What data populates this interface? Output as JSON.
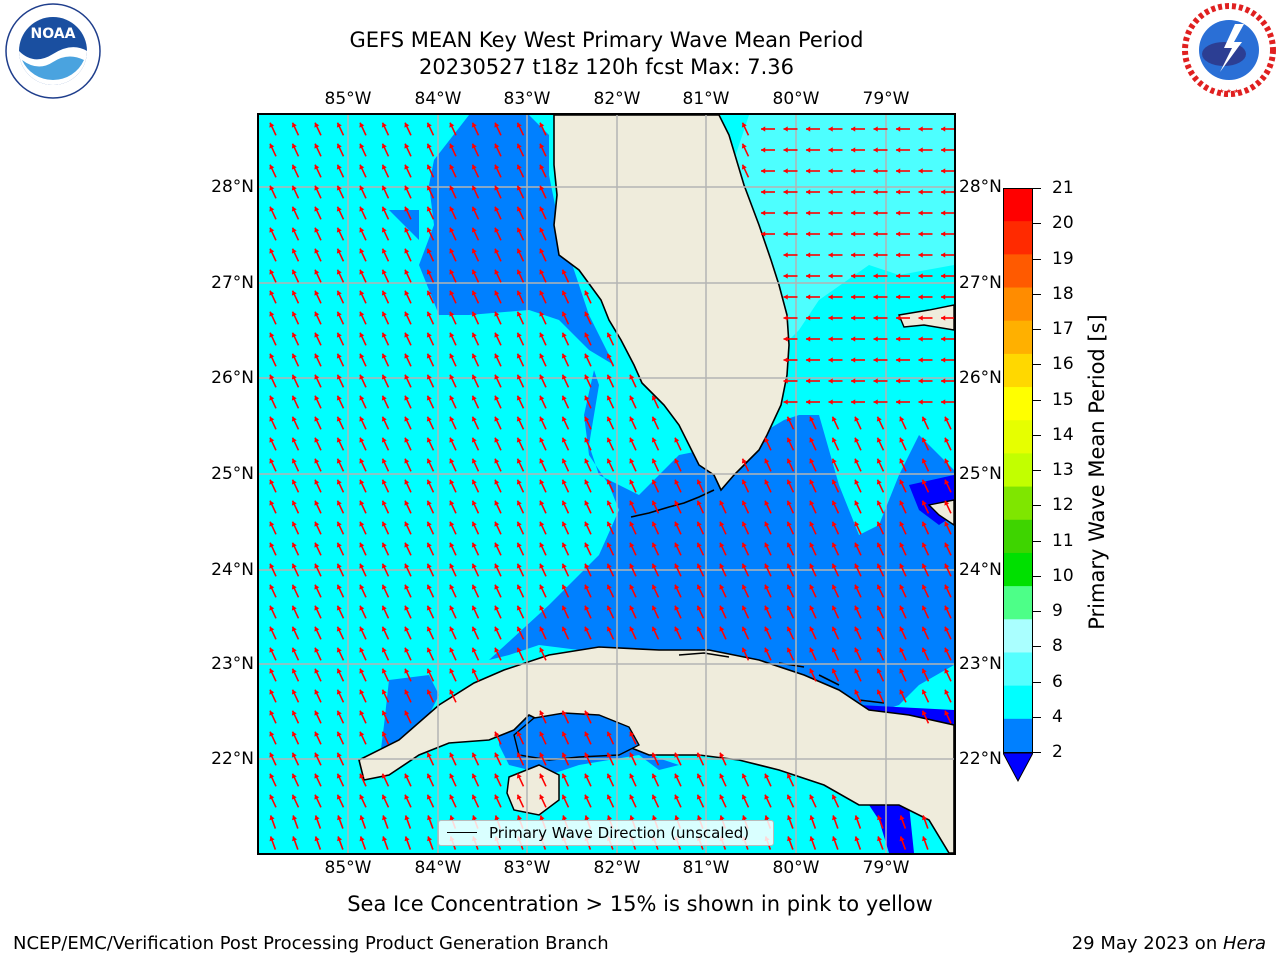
{
  "title": {
    "line1": "GEFS MEAN Key West Primary Wave Mean Period",
    "line2": "20230527 t18z 120h fcst   Max: 7.36"
  },
  "logos": {
    "left": {
      "name": "noaa-logo",
      "text": "NOAA",
      "ring_text": "NATIONAL OCEANIC AND ATMOSPHERIC ADMINISTRATION · U.S. DEPARTMENT OF COMMERCE"
    },
    "right": {
      "name": "nws-logo",
      "ring_text": "NATIONAL WEATHER SERVICE"
    }
  },
  "map": {
    "lon_labels": [
      "85°W",
      "84°W",
      "83°W",
      "82°W",
      "81°W",
      "80°W",
      "79°W"
    ],
    "lat_labels": [
      "28°N",
      "27°N",
      "26°N",
      "25°N",
      "24°N",
      "23°N",
      "22°N"
    ],
    "legend": "Primary Wave Direction (unscaled)",
    "land_color": "#efecdc",
    "ocean_colors": {
      "2-4": "#0080ff",
      "4-6": "#00ffff",
      "6-8": "#4dffff",
      "below": "#0000ff"
    },
    "arrow_color": "#ff0000",
    "grid": true
  },
  "colorbar": {
    "label": "Primary Wave Mean Period [s]",
    "ticks": [
      "21",
      "20",
      "19",
      "18",
      "17",
      "16",
      "15",
      "14",
      "13",
      "12",
      "11",
      "10",
      "9",
      "8",
      "6",
      "4",
      "2"
    ],
    "colors": [
      "#ff0000",
      "#ff2a00",
      "#ff5a00",
      "#ff8c00",
      "#ffb000",
      "#ffd800",
      "#ffff00",
      "#e6ff00",
      "#c2ff00",
      "#7fe600",
      "#3ed400",
      "#00e000",
      "#4dff88",
      "#aaffff",
      "#55ffff",
      "#00ffff",
      "#0080ff"
    ],
    "under_color": "#0000ff"
  },
  "caption": "Sea Ice Concentration > 15% is shown in pink to yellow",
  "footer": {
    "left": "NCEP/EMC/Verification Post Processing Product Generation Branch",
    "date": "29 May 2023 on ",
    "host": "Hera"
  }
}
